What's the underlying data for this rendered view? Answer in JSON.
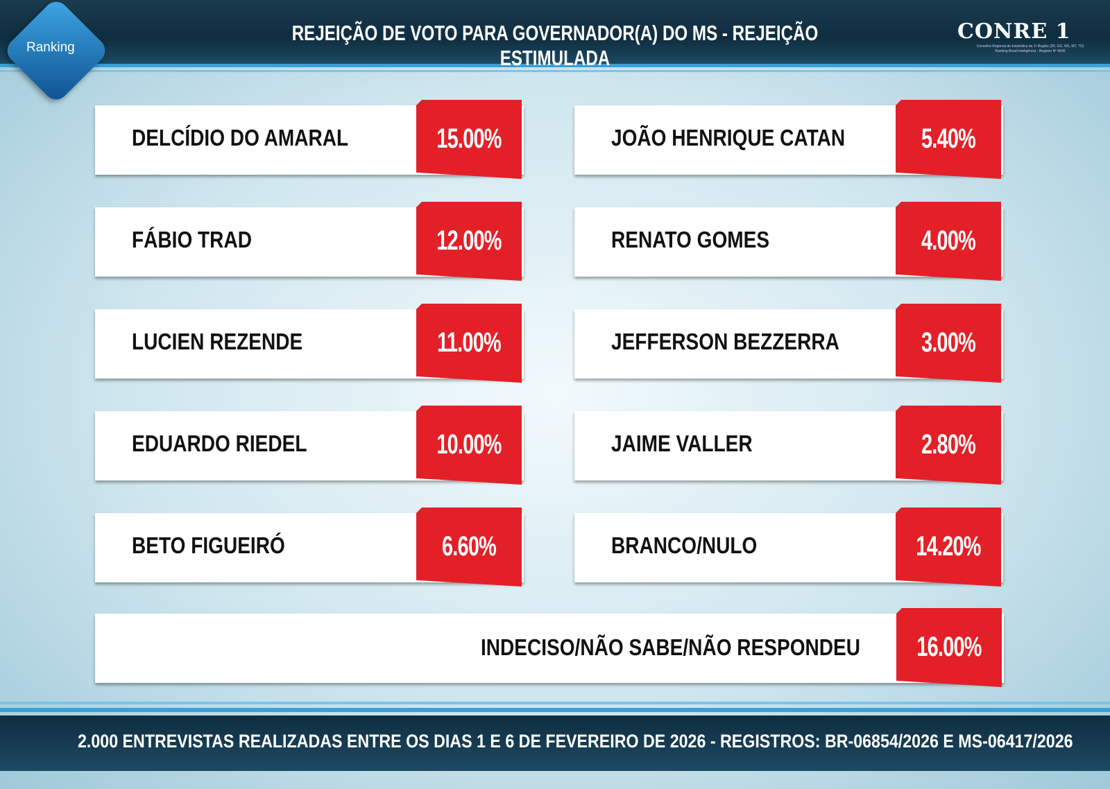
{
  "header": {
    "logo": "Ranking",
    "title": "REJEIÇÃO DE VOTO PARA GOVERNADOR(A) DO MS - REJEIÇÃO ESTIMULADA",
    "brand": "CONRE 1",
    "brand_lines": [
      "Conselho Regional de Estatística da 1ª Região (DF, GO, MS, MT, TO)",
      "Ranking Brasil Inteligência - Registro Nº 8645"
    ]
  },
  "items": [
    {
      "name": "DELCÍDIO DO AMARAL",
      "value": "15.00%"
    },
    {
      "name": "FÁBIO TRAD",
      "value": "12.00%"
    },
    {
      "name": "LUCIEN REZENDE",
      "value": "11.00%"
    },
    {
      "name": "EDUARDO RIEDEL",
      "value": "10.00%"
    },
    {
      "name": "BETO FIGUEIRÓ",
      "value": "6.60%"
    },
    {
      "name": "JOÃO HENRIQUE CATAN",
      "value": "5.40%"
    },
    {
      "name": "RENATO GOMES",
      "value": "4.00%"
    },
    {
      "name": "JEFFERSON BEZZERRA",
      "value": "3.00%"
    },
    {
      "name": "JAIME VALLER",
      "value": "2.80%"
    },
    {
      "name": "BRANCO/NULO",
      "value": "14.20%"
    },
    {
      "name": "INDECISO/NÃO SABE/NÃO RESPONDEU",
      "value": "16.00%"
    }
  ],
  "footer": "2.000 ENTREVISTAS REALIZADAS ENTRE OS DIAS 1 E 6 DE FEVEREIRO DE 2026 - REGISTROS: BR-06854/2026 E MS-06417/2026"
}
